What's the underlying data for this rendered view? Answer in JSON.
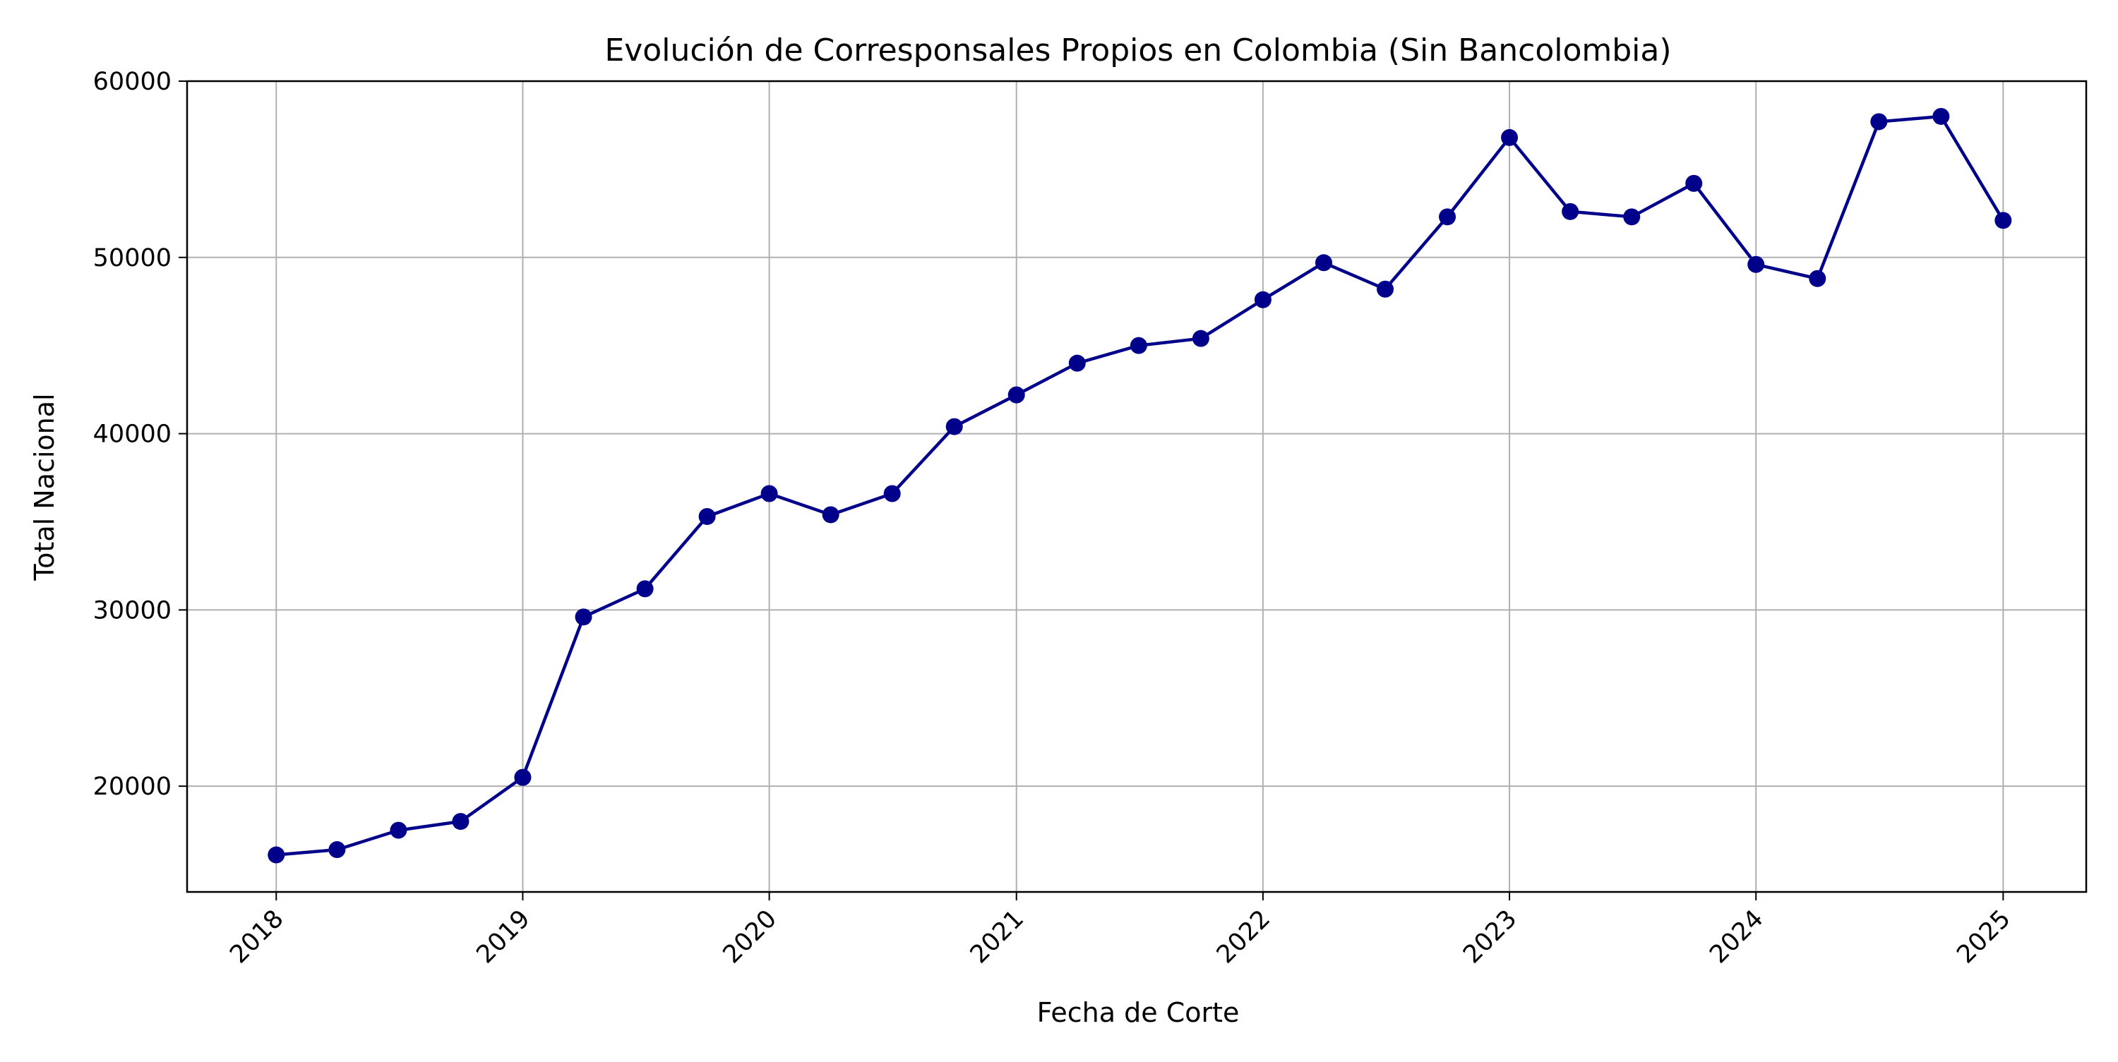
{
  "chart_data": {
    "type": "line",
    "title": "Evolución de Corresponsales Propios en Colombia (Sin Bancolombia)",
    "xlabel": "Fecha de Corte",
    "ylabel": "Total Nacional",
    "xlim": [
      "2017-08-22",
      "2025-05-04"
    ],
    "ylim": [
      14000,
      60000
    ],
    "x_ticks": [
      "2018",
      "2019",
      "2020",
      "2021",
      "2022",
      "2023",
      "2024",
      "2025"
    ],
    "y_ticks": [
      "20000",
      "30000",
      "40000",
      "50000",
      "60000"
    ],
    "grid": true,
    "series": [
      {
        "color": "#00008b",
        "marker": "circle",
        "points": [
          {
            "x": "2018-01-01",
            "y": 16100
          },
          {
            "x": "2018-04-01",
            "y": 16400
          },
          {
            "x": "2018-07-01",
            "y": 17500
          },
          {
            "x": "2018-10-01",
            "y": 18000
          },
          {
            "x": "2019-01-01",
            "y": 20500
          },
          {
            "x": "2019-04-01",
            "y": 29600
          },
          {
            "x": "2019-07-01",
            "y": 31200
          },
          {
            "x": "2019-10-01",
            "y": 35300
          },
          {
            "x": "2020-01-01",
            "y": 36600
          },
          {
            "x": "2020-04-01",
            "y": 35400
          },
          {
            "x": "2020-07-01",
            "y": 36600
          },
          {
            "x": "2020-10-01",
            "y": 40400
          },
          {
            "x": "2021-01-01",
            "y": 42200
          },
          {
            "x": "2021-04-01",
            "y": 44000
          },
          {
            "x": "2021-07-01",
            "y": 45000
          },
          {
            "x": "2021-10-01",
            "y": 45400
          },
          {
            "x": "2022-01-01",
            "y": 47600
          },
          {
            "x": "2022-04-01",
            "y": 49700
          },
          {
            "x": "2022-07-01",
            "y": 48200
          },
          {
            "x": "2022-10-01",
            "y": 52300
          },
          {
            "x": "2023-01-01",
            "y": 56800
          },
          {
            "x": "2023-04-01",
            "y": 52600
          },
          {
            "x": "2023-07-01",
            "y": 52300
          },
          {
            "x": "2023-10-01",
            "y": 54200
          },
          {
            "x": "2024-01-01",
            "y": 49600
          },
          {
            "x": "2024-04-01",
            "y": 48800
          },
          {
            "x": "2024-07-01",
            "y": 57700
          },
          {
            "x": "2024-10-01",
            "y": 58000
          },
          {
            "x": "2025-01-01",
            "y": 52100
          }
        ]
      }
    ]
  }
}
